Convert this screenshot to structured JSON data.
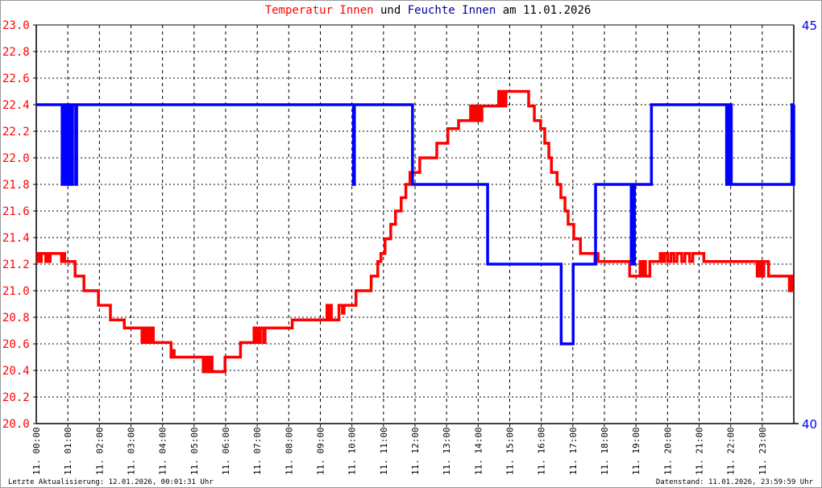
{
  "title": {
    "part1": "Temperatur Innen",
    "part2": "und",
    "part3": "Feuchte Innen",
    "part4": "am 11.01.2026"
  },
  "footer": {
    "left": "Letzte Aktualisierung: 12.01.2026, 00:01:31 Uhr",
    "right": "Datenstand: 11.01.2026, 23:59:59 Uhr"
  },
  "colors": {
    "temperature": "#ff0000",
    "humidity": "#0000ff",
    "title_humidity": "#000099"
  },
  "chart_data": {
    "type": "line",
    "step": true,
    "grid": true,
    "x_unit": "hour of 11.01.2026",
    "xlim": [
      0,
      24
    ],
    "x_tick_labels": [
      "11. 00:00",
      "11. 01:00",
      "11. 02:00",
      "11. 03:00",
      "11. 04:00",
      "11. 05:00",
      "11. 06:00",
      "11. 07:00",
      "11. 08:00",
      "11. 09:00",
      "11. 10:00",
      "11. 11:00",
      "11. 12:00",
      "11. 13:00",
      "11. 14:00",
      "11. 15:00",
      "11. 16:00",
      "11. 17:00",
      "11. 18:00",
      "11. 19:00",
      "11. 20:00",
      "11. 21:00",
      "11. 22:00",
      "11. 23:00"
    ],
    "y_left": {
      "lim": [
        20.0,
        23.0
      ],
      "ticks": [
        "20.0",
        "20.2",
        "20.4",
        "20.6",
        "20.8",
        "21.0",
        "21.2",
        "21.4",
        "21.6",
        "21.8",
        "22.0",
        "22.2",
        "22.4",
        "22.6",
        "22.8",
        "23.0"
      ]
    },
    "y_right": {
      "lim": [
        40,
        45
      ],
      "ticks": [
        "40",
        "45"
      ]
    },
    "series": [
      {
        "name": "Temperatur Innen",
        "axis": "left",
        "points": [
          [
            0,
            21.22
          ],
          [
            0.05,
            21.28
          ],
          [
            0.12,
            21.22
          ],
          [
            0.16,
            21.28
          ],
          [
            0.3,
            21.22
          ],
          [
            0.34,
            21.28
          ],
          [
            0.4,
            21.22
          ],
          [
            0.44,
            21.28
          ],
          [
            0.8,
            21.22
          ],
          [
            0.83,
            21.28
          ],
          [
            0.9,
            21.22
          ],
          [
            1.23,
            21.11
          ],
          [
            1.51,
            21.0
          ],
          [
            1.97,
            20.89
          ],
          [
            2.35,
            20.78
          ],
          [
            2.79,
            20.72
          ],
          [
            3.35,
            20.61
          ],
          [
            3.4,
            20.72
          ],
          [
            3.45,
            20.61
          ],
          [
            3.5,
            20.72
          ],
          [
            3.56,
            20.61
          ],
          [
            3.62,
            20.72
          ],
          [
            3.71,
            20.61
          ],
          [
            4.27,
            20.5
          ],
          [
            4.32,
            20.55
          ],
          [
            4.37,
            20.5
          ],
          [
            5.29,
            20.39
          ],
          [
            5.33,
            20.5
          ],
          [
            5.37,
            20.39
          ],
          [
            5.42,
            20.5
          ],
          [
            5.47,
            20.39
          ],
          [
            5.52,
            20.5
          ],
          [
            5.57,
            20.39
          ],
          [
            5.98,
            20.5
          ],
          [
            6.47,
            20.61
          ],
          [
            6.9,
            20.72
          ],
          [
            6.95,
            20.61
          ],
          [
            7.0,
            20.72
          ],
          [
            7.05,
            20.61
          ],
          [
            7.1,
            20.72
          ],
          [
            7.2,
            20.61
          ],
          [
            7.25,
            20.72
          ],
          [
            8.11,
            20.78
          ],
          [
            9.21,
            20.89
          ],
          [
            9.26,
            20.78
          ],
          [
            9.3,
            20.89
          ],
          [
            9.35,
            20.78
          ],
          [
            9.59,
            20.89
          ],
          [
            9.7,
            20.83
          ],
          [
            9.75,
            20.89
          ],
          [
            10.13,
            21.0
          ],
          [
            10.61,
            21.11
          ],
          [
            10.82,
            21.22
          ],
          [
            10.92,
            21.28
          ],
          [
            11.05,
            21.39
          ],
          [
            11.23,
            21.5
          ],
          [
            11.38,
            21.6
          ],
          [
            11.56,
            21.7
          ],
          [
            11.71,
            21.8
          ],
          [
            11.84,
            21.89
          ],
          [
            12.15,
            22.0
          ],
          [
            12.69,
            22.11
          ],
          [
            13.04,
            22.22
          ],
          [
            13.38,
            22.28
          ],
          [
            13.76,
            22.39
          ],
          [
            13.8,
            22.28
          ],
          [
            13.86,
            22.39
          ],
          [
            13.92,
            22.28
          ],
          [
            13.98,
            22.39
          ],
          [
            14.05,
            22.28
          ],
          [
            14.12,
            22.39
          ],
          [
            14.19,
            22.39
          ],
          [
            14.65,
            22.5
          ],
          [
            14.7,
            22.39
          ],
          [
            14.76,
            22.5
          ],
          [
            14.82,
            22.39
          ],
          [
            14.88,
            22.5
          ],
          [
            14.96,
            22.5
          ],
          [
            15.6,
            22.39
          ],
          [
            15.78,
            22.28
          ],
          [
            15.98,
            22.22
          ],
          [
            16.11,
            22.11
          ],
          [
            16.24,
            22.0
          ],
          [
            16.32,
            21.89
          ],
          [
            16.5,
            21.8
          ],
          [
            16.62,
            21.7
          ],
          [
            16.75,
            21.6
          ],
          [
            16.85,
            21.5
          ],
          [
            17.03,
            21.39
          ],
          [
            17.24,
            21.28
          ],
          [
            17.7,
            21.22
          ],
          [
            17.75,
            21.28
          ],
          [
            17.8,
            21.22
          ],
          [
            18.8,
            21.11
          ],
          [
            19.13,
            21.22
          ],
          [
            19.18,
            21.11
          ],
          [
            19.23,
            21.22
          ],
          [
            19.3,
            21.11
          ],
          [
            19.44,
            21.22
          ],
          [
            19.77,
            21.28
          ],
          [
            19.82,
            21.22
          ],
          [
            19.9,
            21.28
          ],
          [
            20.0,
            21.22
          ],
          [
            20.1,
            21.28
          ],
          [
            20.2,
            21.22
          ],
          [
            20.3,
            21.28
          ],
          [
            20.45,
            21.22
          ],
          [
            20.55,
            21.28
          ],
          [
            20.7,
            21.22
          ],
          [
            20.8,
            21.28
          ],
          [
            21.15,
            21.22
          ],
          [
            22.84,
            21.11
          ],
          [
            22.9,
            21.22
          ],
          [
            22.96,
            21.11
          ],
          [
            23.05,
            21.22
          ],
          [
            23.2,
            21.11
          ],
          [
            23.86,
            21.0
          ],
          [
            23.9,
            21.11
          ],
          [
            23.94,
            21.0
          ],
          [
            24,
            21.0
          ]
        ]
      },
      {
        "name": "Feuchte Innen",
        "axis": "right",
        "points": [
          [
            0,
            44
          ],
          [
            0.82,
            43
          ],
          [
            0.86,
            44
          ],
          [
            0.9,
            43
          ],
          [
            0.95,
            44
          ],
          [
            1.0,
            43
          ],
          [
            1.05,
            44
          ],
          [
            1.1,
            43
          ],
          [
            1.15,
            44
          ],
          [
            1.25,
            43
          ],
          [
            1.28,
            44
          ],
          [
            10.05,
            43
          ],
          [
            10.08,
            44
          ],
          [
            11.92,
            43
          ],
          [
            14.3,
            42
          ],
          [
            16.63,
            41
          ],
          [
            17.01,
            42
          ],
          [
            17.72,
            43
          ],
          [
            18.85,
            42
          ],
          [
            18.88,
            43
          ],
          [
            18.92,
            42
          ],
          [
            18.95,
            43
          ],
          [
            19.49,
            44
          ],
          [
            21.87,
            43
          ],
          [
            21.9,
            44
          ],
          [
            21.94,
            43
          ],
          [
            21.97,
            44
          ],
          [
            22.02,
            43
          ],
          [
            23.94,
            44
          ],
          [
            23.97,
            43
          ],
          [
            24,
            44
          ]
        ]
      }
    ]
  }
}
